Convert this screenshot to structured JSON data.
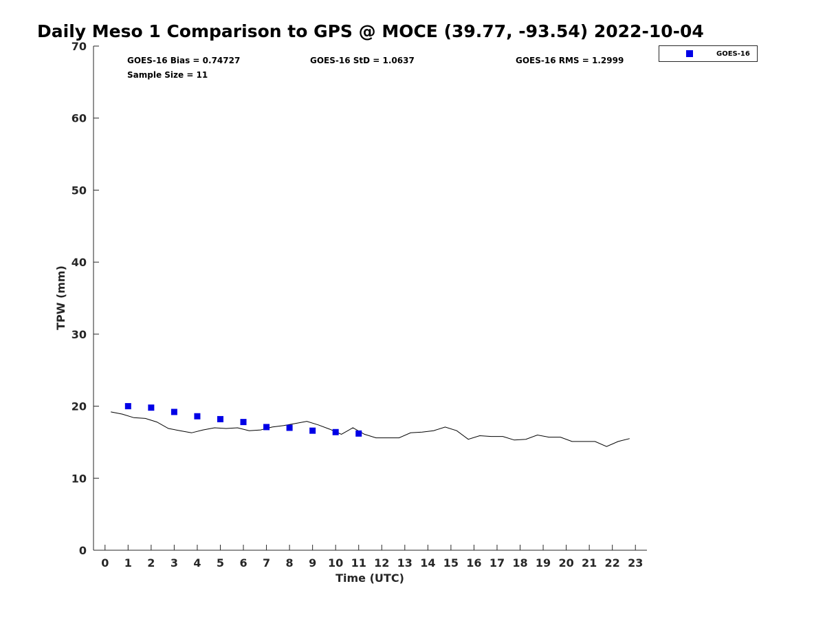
{
  "chart_data": {
    "type": "scatter",
    "title": "Daily Meso 1 Comparison to GPS @ MOCE (39.77, -93.54) 2022-10-04",
    "xlabel": "Time (UTC)",
    "ylabel": "TPW (mm)",
    "xlim": [
      -0.5,
      23.5
    ],
    "ylim": [
      0,
      70
    ],
    "xticks": [
      0,
      1,
      2,
      3,
      4,
      5,
      6,
      7,
      8,
      9,
      10,
      11,
      12,
      13,
      14,
      15,
      16,
      17,
      18,
      19,
      20,
      21,
      22,
      23
    ],
    "yticks": [
      0,
      10,
      20,
      30,
      40,
      50,
      60,
      70
    ],
    "grid": false,
    "legend_position": "top-right, outside plot",
    "annotations": {
      "bias": "GOES-16 Bias = 0.74727",
      "std": "GOES-16 StD = 1.0637",
      "rms": "GOES-16 RMS = 1.2999",
      "sample_size": "Sample Size = 11"
    },
    "series": [
      {
        "name": "GOES-16",
        "kind": "scatter",
        "marker": "square",
        "color": "#0000e6",
        "x": [
          1,
          2,
          3,
          4,
          5,
          6,
          7,
          8,
          9,
          10,
          11
        ],
        "y": [
          20.0,
          19.8,
          19.2,
          18.6,
          18.2,
          17.8,
          17.1,
          17.0,
          16.6,
          16.4,
          16.2
        ]
      },
      {
        "kind": "line",
        "color": "#000000",
        "x": [
          0.25,
          0.75,
          1.25,
          1.75,
          2.25,
          2.75,
          3.25,
          3.75,
          4.25,
          4.75,
          5.25,
          5.75,
          6.25,
          6.75,
          7.25,
          7.75,
          8.25,
          8.75,
          9.25,
          9.75,
          10.25,
          10.75,
          11.25,
          11.75,
          12.25,
          12.75,
          13.25,
          13.75,
          14.25,
          14.75,
          15.25,
          15.75,
          16.25,
          16.75,
          17.25,
          17.75,
          18.25,
          18.75,
          19.25,
          19.75,
          20.25,
          20.75,
          21.25,
          21.75,
          22.25,
          22.75
        ],
        "y": [
          19.2,
          18.9,
          18.4,
          18.3,
          17.8,
          16.9,
          16.6,
          16.3,
          16.7,
          17.0,
          16.9,
          17.0,
          16.6,
          16.7,
          17.1,
          17.3,
          17.6,
          17.9,
          17.4,
          16.8,
          16.1,
          17.0,
          16.1,
          15.6,
          15.6,
          15.6,
          16.3,
          16.4,
          16.6,
          17.1,
          16.6,
          15.4,
          15.9,
          15.8,
          15.8,
          15.3,
          15.4,
          16.0,
          15.7,
          15.7,
          15.1,
          15.1,
          15.1,
          14.4,
          15.1,
          15.5
        ]
      }
    ]
  }
}
